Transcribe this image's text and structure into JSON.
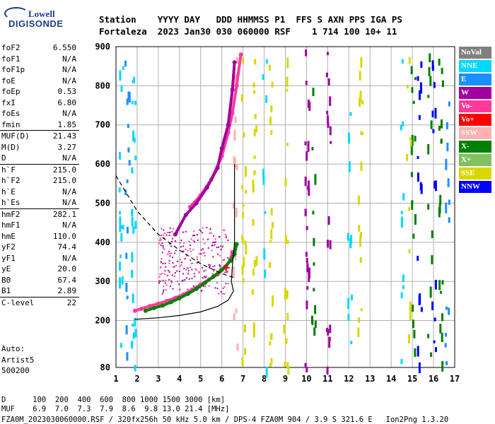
{
  "logo": {
    "line1": "Lowell",
    "line2": "DIGISONDE"
  },
  "header": {
    "line1": "Station    YYYY DAY   DDD HHMMSS P1  FFS S AXN PPS IGA PS",
    "line2": "Fortaleza  2023 Jan30 030 060000 RSF    1 714 100 10+ 11"
  },
  "params": [
    {
      "name": "foF2",
      "value": "6.550"
    },
    {
      "name": "foF1",
      "value": "N/A"
    },
    {
      "name": "foF1p",
      "value": "N/A"
    },
    {
      "name": "foE",
      "value": "N/A"
    },
    {
      "name": "foEp",
      "value": "0.53"
    },
    {
      "name": "fxI",
      "value": "6.80"
    },
    {
      "name": "foEs",
      "value": "N/A"
    },
    {
      "name": "fmin",
      "value": "1.85"
    },
    {
      "name": "MUF(D)",
      "value": "21.43"
    },
    {
      "name": "M(D)",
      "value": "3.27"
    },
    {
      "name": "D",
      "value": "N/A"
    },
    {
      "name": "h`F",
      "value": "215.0"
    },
    {
      "name": "h`F2",
      "value": "215.0"
    },
    {
      "name": "h`E",
      "value": "N/A"
    },
    {
      "name": "h`Es",
      "value": "N/A"
    },
    {
      "name": "hmF2",
      "value": "282.1"
    },
    {
      "name": "hmF1",
      "value": "N/A"
    },
    {
      "name": "hmE",
      "value": "110.0"
    },
    {
      "name": "yF2",
      "value": "74.4"
    },
    {
      "name": "yF1",
      "value": "N/A"
    },
    {
      "name": "yE",
      "value": "20.0"
    },
    {
      "name": "B0",
      "value": "67.4"
    },
    {
      "name": "B1",
      "value": "2.89"
    },
    {
      "name": "C-level",
      "value": "22"
    }
  ],
  "auto": {
    "line1": "Auto:",
    "line2": "Artist5",
    "line3": "500200"
  },
  "legend": [
    {
      "label": "NoVal",
      "color": "#808080"
    },
    {
      "label": "NNE",
      "color": "#00d8ff"
    },
    {
      "label": "E",
      "color": "#1a90ff"
    },
    {
      "label": "W",
      "color": "#a000a0"
    },
    {
      "label": "Vo-",
      "color": "#ff3a9a"
    },
    {
      "label": "Vo+",
      "color": "#ff0000"
    },
    {
      "label": "SSW",
      "color": "#ffb0b0"
    },
    {
      "label": "X-",
      "color": "#008000"
    },
    {
      "label": "X+",
      "color": "#80c060"
    },
    {
      "label": "SSE",
      "color": "#d8d800"
    },
    {
      "label": "NNW",
      "color": "#0000ff"
    }
  ],
  "footer": {
    "line1": "D      100  200  400  600  800 1000 1500 3000 [km]",
    "line2": "MUF    6.9  7.0  7.3  7.9  8.6  9.8 13.0 21.4 [MHz]",
    "line3": "FZA0M_2023030060000.RSF / 320fx256h 50 kHz 5.0 km / DPS-4 FZA0M 904 / 3.9 S 321.6 E   Ion2Png 1.3.20"
  },
  "chart_data": {
    "type": "scatter",
    "title": "",
    "xlabel": "",
    "ylabel": "",
    "xlim": [
      1,
      17
    ],
    "ylim": [
      80,
      900
    ],
    "xticks": [
      1,
      2,
      3,
      4,
      5,
      6,
      7,
      8,
      9,
      10,
      11,
      12,
      13,
      14,
      15,
      16,
      17
    ],
    "yticks": [
      80,
      200,
      300,
      400,
      500,
      600,
      700,
      800,
      900
    ],
    "grid": true,
    "series": [
      {
        "name": "Vo-",
        "color": "#ff3a9a",
        "points": [
          [
            1.9,
            225
          ],
          [
            2.2,
            230
          ],
          [
            2.6,
            237
          ],
          [
            3.0,
            243
          ],
          [
            3.4,
            250
          ],
          [
            3.8,
            258
          ],
          [
            4.2,
            267
          ],
          [
            4.6,
            279
          ],
          [
            5.0,
            292
          ],
          [
            5.4,
            305
          ],
          [
            5.8,
            318
          ],
          [
            6.2,
            337
          ],
          [
            6.4,
            355
          ],
          [
            6.5,
            375
          ]
        ]
      },
      {
        "name": "X-",
        "color": "#008000",
        "points": [
          [
            2.4,
            225
          ],
          [
            2.8,
            232
          ],
          [
            3.2,
            238
          ],
          [
            3.6,
            247
          ],
          [
            4.0,
            257
          ],
          [
            4.4,
            268
          ],
          [
            4.8,
            281
          ],
          [
            5.2,
            296
          ],
          [
            5.6,
            312
          ],
          [
            6.0,
            330
          ],
          [
            6.4,
            352
          ],
          [
            6.6,
            370
          ],
          [
            6.7,
            395
          ]
        ]
      },
      {
        "name": "Vo- (2hop)",
        "color": "#ff3a9a",
        "points": [
          [
            4.5,
            490
          ],
          [
            5.0,
            520
          ],
          [
            5.5,
            560
          ],
          [
            6.0,
            620
          ],
          [
            6.3,
            680
          ],
          [
            6.5,
            730
          ],
          [
            6.7,
            800
          ],
          [
            6.9,
            880
          ]
        ]
      },
      {
        "name": "W",
        "color": "#a000a0",
        "points": [
          [
            3.8,
            420
          ],
          [
            4.3,
            470
          ],
          [
            4.8,
            500
          ],
          [
            5.3,
            540
          ],
          [
            5.8,
            590
          ],
          [
            6.0,
            640
          ],
          [
            6.3,
            700
          ],
          [
            6.5,
            790
          ],
          [
            6.6,
            860
          ]
        ]
      }
    ],
    "profile": [
      [
        1.9,
        203
      ],
      [
        3.0,
        207
      ],
      [
        4.0,
        213
      ],
      [
        5.0,
        222
      ],
      [
        5.8,
        236
      ],
      [
        6.3,
        252
      ],
      [
        6.55,
        275
      ],
      [
        6.45,
        300
      ],
      [
        6.5,
        340
      ],
      [
        6.6,
        400
      ],
      [
        6.6,
        600
      ]
    ],
    "muf_curve": [
      [
        1.0,
        570
      ],
      [
        2.0,
        480
      ],
      [
        3.0,
        420
      ],
      [
        4.0,
        380
      ],
      [
        5.0,
        345
      ],
      [
        6.0,
        320
      ],
      [
        6.55,
        310
      ]
    ],
    "marker": {
      "x": 6.2,
      "y": 335
    }
  }
}
